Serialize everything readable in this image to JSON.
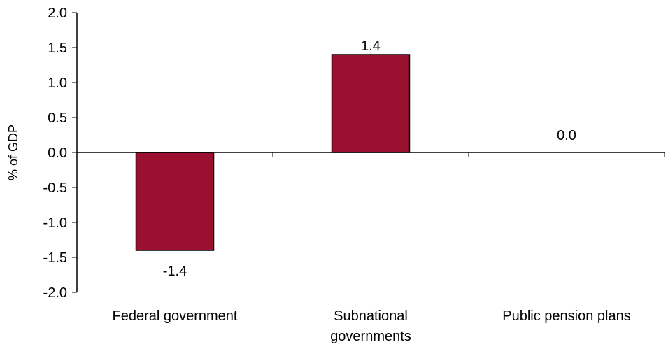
{
  "chart_data": {
    "type": "bar",
    "title": "",
    "xlabel": "",
    "ylabel": "% of GDP",
    "categories": [
      [
        "Federal government"
      ],
      [
        "Subnational",
        "governments"
      ],
      [
        "Public pension plans"
      ]
    ],
    "values": [
      -1.4,
      1.4,
      0.0
    ],
    "data_labels": [
      "-1.4",
      "1.4",
      "0.0"
    ],
    "ylim": [
      -2.0,
      2.0
    ],
    "yticks": [
      2.0,
      1.5,
      1.0,
      0.5,
      0.0,
      -0.5,
      -1.0,
      -1.5,
      -2.0
    ],
    "ytick_labels": [
      "2.0",
      "1.5",
      "1.0",
      "0.5",
      "0.0",
      "-0.5",
      "-1.0",
      "-1.5",
      "-2.0"
    ],
    "grid": false,
    "legend": "none",
    "colors": {
      "bar_fill": "#9b1030",
      "bar_stroke": "#000000",
      "axis": "#000000"
    }
  }
}
